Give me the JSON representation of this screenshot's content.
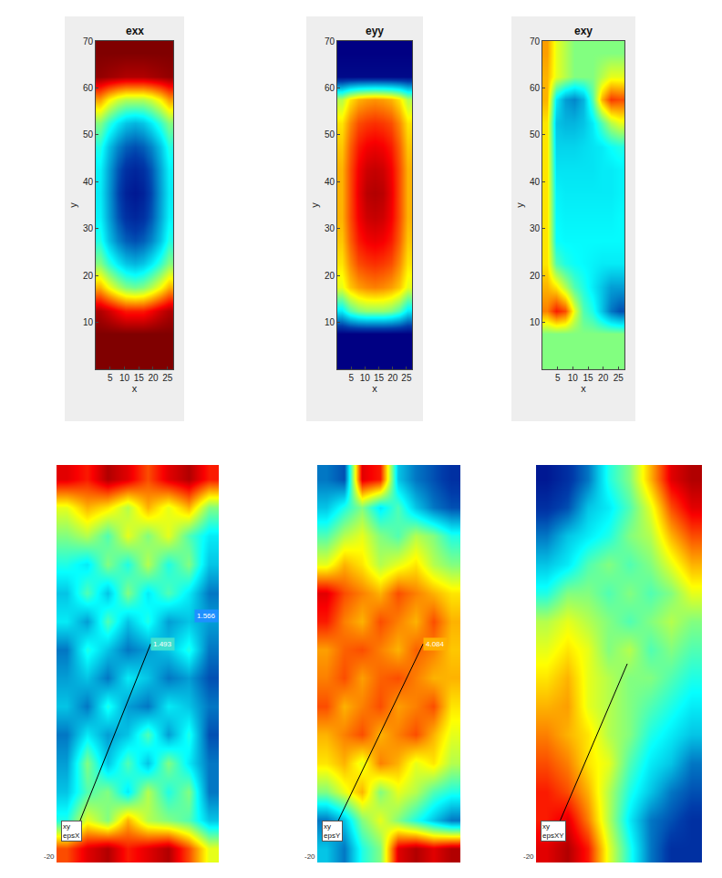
{
  "chart_data": [
    {
      "type": "heatmap",
      "title": "exx",
      "x_label": "x",
      "y_label": "y",
      "x": [
        1.5,
        4.5,
        7.5,
        10.5,
        13.5,
        16.5,
        19.5,
        22.5,
        25.5
      ],
      "y": [
        2.5,
        7.5,
        12.5,
        17.5,
        22.5,
        27.5,
        32.5,
        37.5,
        42.5,
        47.5,
        52.5,
        57.5,
        62.5,
        67.5
      ],
      "z": [
        [
          1,
          1,
          1,
          1,
          1,
          1,
          1,
          1,
          1
        ],
        [
          1,
          1,
          1,
          1,
          1,
          1,
          1,
          1,
          1
        ],
        [
          0.95,
          0.92,
          0.88,
          0.85,
          0.85,
          0.85,
          0.88,
          0.92,
          0.95
        ],
        [
          0.7,
          0.62,
          0.55,
          0.5,
          0.48,
          0.5,
          0.55,
          0.62,
          0.7
        ],
        [
          0.5,
          0.42,
          0.35,
          0.3,
          0.28,
          0.3,
          0.35,
          0.42,
          0.5
        ],
        [
          0.4,
          0.3,
          0.22,
          0.17,
          0.15,
          0.17,
          0.22,
          0.3,
          0.4
        ],
        [
          0.36,
          0.26,
          0.16,
          0.1,
          0.08,
          0.1,
          0.16,
          0.26,
          0.36
        ],
        [
          0.35,
          0.25,
          0.14,
          0.07,
          0.05,
          0.07,
          0.14,
          0.25,
          0.35
        ],
        [
          0.36,
          0.26,
          0.16,
          0.1,
          0.08,
          0.1,
          0.16,
          0.26,
          0.36
        ],
        [
          0.4,
          0.3,
          0.22,
          0.17,
          0.15,
          0.17,
          0.22,
          0.3,
          0.4
        ],
        [
          0.5,
          0.42,
          0.35,
          0.3,
          0.28,
          0.3,
          0.35,
          0.42,
          0.5
        ],
        [
          0.72,
          0.64,
          0.58,
          0.55,
          0.55,
          0.55,
          0.58,
          0.64,
          0.72
        ],
        [
          0.98,
          0.97,
          0.96,
          0.95,
          0.95,
          0.95,
          0.96,
          0.97,
          0.98
        ],
        [
          1,
          1,
          1,
          1,
          1,
          1,
          1,
          1,
          1
        ]
      ],
      "zlim": [
        0,
        1
      ],
      "xlim": [
        0,
        27
      ],
      "xticks": [
        5,
        10,
        15,
        20,
        25
      ],
      "ylim": [
        0,
        70
      ],
      "yticks": [
        10,
        20,
        30,
        40,
        50,
        60,
        70
      ]
    },
    {
      "type": "heatmap",
      "title": "eyy",
      "x_label": "x",
      "y_label": "y",
      "x": [
        1.5,
        4.5,
        7.5,
        10.5,
        13.5,
        16.5,
        19.5,
        22.5,
        25.5
      ],
      "y": [
        2.5,
        7.5,
        12.5,
        17.5,
        22.5,
        27.5,
        32.5,
        37.5,
        42.5,
        47.5,
        52.5,
        57.5,
        62.5,
        67.5
      ],
      "z": [
        [
          0,
          0,
          0,
          0,
          0,
          0,
          0,
          0,
          0
        ],
        [
          0,
          0,
          0,
          0,
          0,
          0,
          0,
          0,
          0
        ],
        [
          0.35,
          0.45,
          0.5,
          0.52,
          0.52,
          0.52,
          0.5,
          0.45,
          0.35
        ],
        [
          0.6,
          0.68,
          0.72,
          0.74,
          0.75,
          0.74,
          0.72,
          0.68,
          0.6
        ],
        [
          0.65,
          0.74,
          0.8,
          0.82,
          0.83,
          0.82,
          0.8,
          0.74,
          0.65
        ],
        [
          0.68,
          0.78,
          0.85,
          0.88,
          0.89,
          0.88,
          0.85,
          0.78,
          0.68
        ],
        [
          0.7,
          0.8,
          0.88,
          0.92,
          0.93,
          0.92,
          0.88,
          0.8,
          0.7
        ],
        [
          0.7,
          0.8,
          0.89,
          0.94,
          0.95,
          0.94,
          0.89,
          0.8,
          0.7
        ],
        [
          0.7,
          0.8,
          0.88,
          0.92,
          0.93,
          0.92,
          0.88,
          0.8,
          0.7
        ],
        [
          0.68,
          0.78,
          0.85,
          0.88,
          0.89,
          0.88,
          0.85,
          0.78,
          0.68
        ],
        [
          0.65,
          0.74,
          0.8,
          0.82,
          0.83,
          0.82,
          0.8,
          0.74,
          0.65
        ],
        [
          0.55,
          0.65,
          0.7,
          0.72,
          0.73,
          0.72,
          0.7,
          0.65,
          0.55
        ],
        [
          0.02,
          0.02,
          0.02,
          0.02,
          0.02,
          0.02,
          0.02,
          0.02,
          0.02
        ],
        [
          0,
          0,
          0,
          0,
          0,
          0,
          0,
          0,
          0
        ]
      ],
      "zlim": [
        0,
        1
      ],
      "xlim": [
        0,
        27
      ],
      "xticks": [
        5,
        10,
        15,
        20,
        25
      ],
      "ylim": [
        0,
        70
      ],
      "yticks": [
        10,
        20,
        30,
        40,
        50,
        60,
        70
      ]
    },
    {
      "type": "heatmap",
      "title": "exy",
      "x_label": "x",
      "y_label": "y",
      "x": [
        1.5,
        4.5,
        7.5,
        10.5,
        13.5,
        16.5,
        19.5,
        22.5,
        25.5
      ],
      "y": [
        2.5,
        7.5,
        12.5,
        17.5,
        22.5,
        27.5,
        32.5,
        37.5,
        42.5,
        47.5,
        52.5,
        57.5,
        62.5,
        67.5
      ],
      "z": [
        [
          0.5,
          0.5,
          0.5,
          0.5,
          0.5,
          0.5,
          0.5,
          0.5,
          0.5
        ],
        [
          0.5,
          0.5,
          0.5,
          0.5,
          0.5,
          0.5,
          0.5,
          0.5,
          0.5
        ],
        [
          0.75,
          0.85,
          0.8,
          0.6,
          0.45,
          0.4,
          0.3,
          0.2,
          0.15
        ],
        [
          0.7,
          0.65,
          0.55,
          0.45,
          0.4,
          0.35,
          0.3,
          0.25,
          0.25
        ],
        [
          0.65,
          0.45,
          0.4,
          0.38,
          0.37,
          0.36,
          0.35,
          0.35,
          0.35
        ],
        [
          0.65,
          0.38,
          0.37,
          0.37,
          0.37,
          0.37,
          0.37,
          0.37,
          0.37
        ],
        [
          0.65,
          0.37,
          0.36,
          0.36,
          0.36,
          0.36,
          0.36,
          0.36,
          0.37
        ],
        [
          0.65,
          0.36,
          0.35,
          0.35,
          0.35,
          0.35,
          0.35,
          0.35,
          0.36
        ],
        [
          0.65,
          0.34,
          0.34,
          0.34,
          0.34,
          0.34,
          0.35,
          0.35,
          0.36
        ],
        [
          0.65,
          0.32,
          0.32,
          0.32,
          0.33,
          0.34,
          0.35,
          0.38,
          0.4
        ],
        [
          0.65,
          0.3,
          0.28,
          0.28,
          0.3,
          0.35,
          0.45,
          0.55,
          0.6
        ],
        [
          0.7,
          0.35,
          0.25,
          0.22,
          0.28,
          0.45,
          0.7,
          0.82,
          0.8
        ],
        [
          0.7,
          0.6,
          0.55,
          0.5,
          0.5,
          0.5,
          0.55,
          0.6,
          0.6
        ],
        [
          0.72,
          0.6,
          0.55,
          0.5,
          0.5,
          0.5,
          0.5,
          0.5,
          0.5
        ]
      ],
      "zlim": [
        0,
        1
      ],
      "xlim": [
        0,
        27
      ],
      "xticks": [
        5,
        10,
        15,
        20,
        25
      ],
      "ylim": [
        0,
        70
      ],
      "yticks": [
        10,
        20,
        30,
        40,
        50,
        60,
        70
      ]
    },
    {
      "type": "heatmap",
      "tick_labels": false,
      "label_box": [
        "xy",
        "epsX"
      ],
      "readouts": [
        "1.493",
        "1.566"
      ],
      "corner_label": "-20",
      "z": [
        [
          0.8,
          0.9,
          0.95,
          0.85,
          0.9,
          0.95,
          0.8,
          0.6
        ],
        [
          0.4,
          0.6,
          0.5,
          0.7,
          0.55,
          0.5,
          0.45,
          0.3
        ],
        [
          0.3,
          0.45,
          0.5,
          0.35,
          0.55,
          0.4,
          0.5,
          0.2
        ],
        [
          0.25,
          0.5,
          0.3,
          0.45,
          0.3,
          0.5,
          0.35,
          0.2
        ],
        [
          0.2,
          0.35,
          0.25,
          0.3,
          0.45,
          0.25,
          0.4,
          0.15
        ],
        [
          0.3,
          0.2,
          0.4,
          0.25,
          0.2,
          0.35,
          0.3,
          0.2
        ],
        [
          0.25,
          0.3,
          0.2,
          0.35,
          0.3,
          0.2,
          0.25,
          0.15
        ],
        [
          0.2,
          0.4,
          0.3,
          0.2,
          0.25,
          0.3,
          0.4,
          0.2
        ],
        [
          0.35,
          0.25,
          0.45,
          0.3,
          0.4,
          0.25,
          0.3,
          0.25
        ],
        [
          0.3,
          0.45,
          0.3,
          0.5,
          0.35,
          0.45,
          0.35,
          0.2
        ],
        [
          0.4,
          0.35,
          0.5,
          0.4,
          0.55,
          0.4,
          0.5,
          0.3
        ],
        [
          0.5,
          0.55,
          0.45,
          0.6,
          0.5,
          0.6,
          0.45,
          0.35
        ],
        [
          0.6,
          0.7,
          0.65,
          0.55,
          0.7,
          0.6,
          0.7,
          0.5
        ],
        [
          0.9,
          0.85,
          0.95,
          0.9,
          0.8,
          0.9,
          0.95,
          0.85
        ]
      ],
      "zlim": [
        0,
        1
      ]
    },
    {
      "type": "heatmap",
      "tick_labels": false,
      "label_box": [
        "xy",
        "epsY"
      ],
      "readouts": [
        "4.084"
      ],
      "corner_label": "-20",
      "z": [
        [
          0.3,
          0.2,
          0.4,
          0.5,
          0.9,
          0.95,
          0.9,
          0.95
        ],
        [
          0.2,
          0.3,
          0.5,
          0.6,
          0.5,
          0.4,
          0.3,
          0.2
        ],
        [
          0.5,
          0.6,
          0.7,
          0.5,
          0.6,
          0.55,
          0.45,
          0.4
        ],
        [
          0.65,
          0.7,
          0.6,
          0.75,
          0.7,
          0.6,
          0.65,
          0.55
        ],
        [
          0.7,
          0.75,
          0.8,
          0.7,
          0.75,
          0.8,
          0.7,
          0.6
        ],
        [
          0.8,
          0.7,
          0.75,
          0.8,
          0.72,
          0.75,
          0.8,
          0.65
        ],
        [
          0.75,
          0.8,
          0.72,
          0.78,
          0.8,
          0.75,
          0.7,
          0.7
        ],
        [
          0.72,
          0.78,
          0.8,
          0.75,
          0.7,
          0.78,
          0.75,
          0.68
        ],
        [
          0.85,
          0.75,
          0.7,
          0.8,
          0.75,
          0.7,
          0.8,
          0.7
        ],
        [
          0.9,
          0.8,
          0.75,
          0.7,
          0.8,
          0.75,
          0.7,
          0.65
        ],
        [
          0.6,
          0.7,
          0.65,
          0.55,
          0.6,
          0.65,
          0.55,
          0.5
        ],
        [
          0.45,
          0.55,
          0.6,
          0.5,
          0.45,
          0.55,
          0.5,
          0.4
        ],
        [
          0.3,
          0.4,
          0.5,
          0.35,
          0.45,
          0.3,
          0.2,
          0.15
        ],
        [
          0.2,
          0.15,
          0.9,
          0.85,
          0.3,
          0.2,
          0.15,
          0.1
        ]
      ],
      "zlim": [
        0,
        1
      ]
    },
    {
      "type": "heatmap",
      "tick_labels": false,
      "label_box": [
        "xy",
        "epsXY"
      ],
      "readouts": [],
      "corner_label": "-20",
      "z": [
        [
          0.9,
          0.95,
          0.85,
          0.6,
          0.4,
          0.2,
          0.1,
          0.1
        ],
        [
          0.85,
          0.9,
          0.75,
          0.55,
          0.35,
          0.2,
          0.15,
          0.1
        ],
        [
          0.85,
          0.8,
          0.7,
          0.55,
          0.4,
          0.3,
          0.2,
          0.15
        ],
        [
          0.8,
          0.75,
          0.65,
          0.6,
          0.45,
          0.35,
          0.3,
          0.2
        ],
        [
          0.75,
          0.7,
          0.65,
          0.55,
          0.5,
          0.4,
          0.35,
          0.3
        ],
        [
          0.7,
          0.72,
          0.6,
          0.55,
          0.5,
          0.45,
          0.4,
          0.35
        ],
        [
          0.65,
          0.7,
          0.6,
          0.55,
          0.5,
          0.5,
          0.45,
          0.4
        ],
        [
          0.6,
          0.65,
          0.6,
          0.5,
          0.55,
          0.45,
          0.5,
          0.45
        ],
        [
          0.55,
          0.6,
          0.55,
          0.5,
          0.45,
          0.5,
          0.55,
          0.5
        ],
        [
          0.4,
          0.5,
          0.5,
          0.45,
          0.5,
          0.45,
          0.5,
          0.6
        ],
        [
          0.3,
          0.35,
          0.45,
          0.5,
          0.45,
          0.5,
          0.6,
          0.7
        ],
        [
          0.2,
          0.3,
          0.35,
          0.4,
          0.5,
          0.55,
          0.7,
          0.8
        ],
        [
          0.1,
          0.15,
          0.3,
          0.35,
          0.45,
          0.6,
          0.8,
          0.9
        ],
        [
          0.05,
          0.1,
          0.2,
          0.4,
          0.5,
          0.7,
          0.9,
          0.95
        ]
      ],
      "zlim": [
        0,
        1
      ]
    }
  ]
}
